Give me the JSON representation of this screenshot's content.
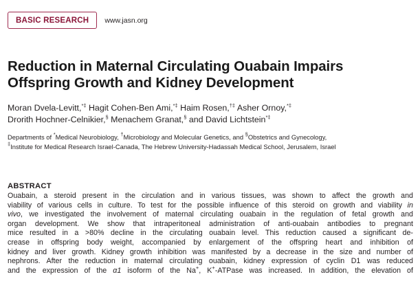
{
  "header": {
    "section_label": "BASIC RESEARCH",
    "journal_url": "www.jasn.org"
  },
  "article": {
    "title_line1": "Reduction in Maternal Circulating Ouabain Impairs",
    "title_line2": "Offspring Growth and Kidney Development",
    "authors": [
      {
        "name": "Moran Dvela-Levitt,",
        "marks": "*‡"
      },
      {
        "name": "Hagit Cohen-Ben Ami,",
        "marks": "*‡"
      },
      {
        "name": "Haim Rosen,",
        "marks": "†‡"
      },
      {
        "name": "Asher Ornoy,",
        "marks": "*‡"
      },
      {
        "name": "Drorith Hochner-Celnikier,",
        "marks": "§"
      },
      {
        "name": "Menachem Granat,",
        "marks": "§"
      },
      {
        "name": "and David Lichtstein",
        "marks": "*‡"
      }
    ],
    "affiliations": {
      "line1_prefix": "Departments of ",
      "mark1": "*",
      "part1": "Medical Neurobiology, ",
      "mark2": "†",
      "part2": "Microbiology and Molecular Genetics, and ",
      "mark3": "§",
      "part3": "Obstetrics and Gynecology,",
      "mark4": "‡",
      "line2": "Institute for Medical Research Israel-Canada, The Hebrew University-Hadassah Medical School, Jerusalem, Israel"
    }
  },
  "abstract": {
    "heading": "ABSTRACT",
    "lines": [
      "Ouabain, a steroid present in the circulation and in various tissues, was shown to affect the growth and",
      "viability of various cells in culture. To test for the possible influence of this steroid on growth and viability ",
      "vivo, we investigated the involvement of maternal circulating ouabain in the regulation of fetal growth and",
      "organ development. We show that intraperitoneal administration of anti-ouabain antibodies to pregnant",
      "mice resulted in a >80% decline in the circulating ouabain level. This reduction caused a significant de-",
      "crease in offspring body weight, accompanied by enlargement of the offspring heart and inhibition of",
      "kidney and liver growth. Kidney growth inhibition was manifested by a decrease in the size and number of",
      "nephrons. After the reduction in maternal circulating ouabain, kidney expression of cyclin D1 was reduced",
      "and the expression of the ",
      "and the expression of the α1 isoform of the Na",
      "ATPase was increased. In addition, the elevation of"
    ],
    "italic_in": "in",
    "italic_vivo": "vivo",
    "alpha": "α1",
    "line9_mid": " isoform of the Na",
    "plus": "+",
    "k": ", K",
    "line9_end": "-ATPase was increased. In addition, the elevation of"
  }
}
